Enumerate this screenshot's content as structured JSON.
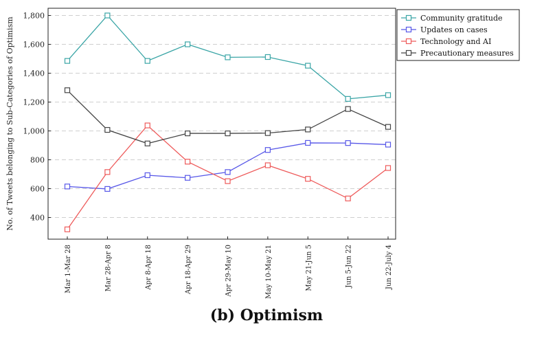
{
  "caption": "(b) Optimism",
  "chart_data": {
    "type": "line",
    "categories": [
      "Mar 1-Mar 28",
      "Mar 28-Apr 8",
      "Apr 8-Apr 18",
      "Apr 18-Apr 29",
      "Apr 29-May 10",
      "May 10-May 21",
      "May 21-Jun 5",
      "Jun 5-Jun 22",
      "Jun 22-July 4"
    ],
    "ylabel": "No. of Tweets belonging to Sub-Categories of Optimism",
    "xlabel": "",
    "ylim": [
      250,
      1850
    ],
    "yticks": [
      400,
      600,
      800,
      1000,
      1200,
      1400,
      1600,
      1800
    ],
    "ytick_labels": [
      "400",
      "600",
      "800",
      "1,000",
      "1,200",
      "1,400",
      "1,600",
      "1,800"
    ],
    "grid": "horizontal dashed",
    "legend_position": "top-right",
    "series": [
      {
        "name": "Community gratitude",
        "color": "#3aa5a6",
        "values": [
          1485,
          1800,
          1485,
          1600,
          1510,
          1512,
          1452,
          1222,
          1248
        ]
      },
      {
        "name": "Updates on cases",
        "color": "#5757e8",
        "values": [
          615,
          598,
          693,
          675,
          715,
          868,
          917,
          916,
          905
        ]
      },
      {
        "name": "Technology and AI",
        "color": "#ee5a5a",
        "values": [
          318,
          715,
          1038,
          787,
          652,
          762,
          668,
          532,
          743
        ]
      },
      {
        "name": "Precautionary measures",
        "color": "#444444",
        "values": [
          1282,
          1007,
          913,
          983,
          983,
          985,
          1010,
          1152,
          1028
        ]
      }
    ]
  }
}
